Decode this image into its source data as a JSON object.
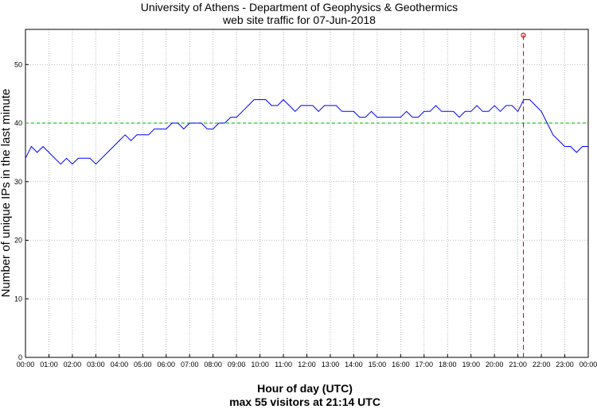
{
  "chart_data": {
    "type": "line",
    "title": "University of Athens - Department of Geophysics & Geothermics",
    "subtitle": "web site traffic for 07-Jun-2018",
    "xlabel": "Hour of day (UTC)",
    "footer": "max 55 visitors at 21:14 UTC",
    "ylabel": "Number of unique IPs in the last minute",
    "xlim": [
      0,
      24
    ],
    "ylim": [
      0,
      56
    ],
    "x_ticks": [
      "00:00",
      "01:00",
      "02:00",
      "03:00",
      "04:00",
      "05:00",
      "06:00",
      "07:00",
      "08:00",
      "09:00",
      "10:00",
      "11:00",
      "12:00",
      "13:00",
      "14:00",
      "15:00",
      "16:00",
      "17:00",
      "18:00",
      "19:00",
      "20:00",
      "21:00",
      "22:00",
      "23:00",
      "00:00"
    ],
    "y_ticks": [
      0,
      10,
      20,
      30,
      40,
      50
    ],
    "grid": true,
    "reference_line": 40,
    "max_point": {
      "x": 21.233,
      "y": 55
    },
    "series": [
      {
        "x": [
          0,
          0.25,
          0.5,
          0.75,
          1,
          1.25,
          1.5,
          1.75,
          2,
          2.25,
          2.5,
          2.75,
          3,
          3.25,
          3.5,
          3.75,
          4,
          4.25,
          4.5,
          4.75,
          5,
          5.25,
          5.5,
          5.75,
          6,
          6.25,
          6.5,
          6.75,
          7,
          7.25,
          7.5,
          7.75,
          8,
          8.25,
          8.5,
          8.75,
          9,
          9.25,
          9.5,
          9.75,
          10,
          10.25,
          10.5,
          10.75,
          11,
          11.25,
          11.5,
          11.75,
          12,
          12.25,
          12.5,
          12.75,
          13,
          13.25,
          13.5,
          13.75,
          14,
          14.25,
          14.5,
          14.75,
          15,
          15.25,
          15.5,
          15.75,
          16,
          16.25,
          16.5,
          16.75,
          17,
          17.25,
          17.5,
          17.75,
          18,
          18.25,
          18.5,
          18.75,
          19,
          19.25,
          19.5,
          19.75,
          20,
          20.25,
          20.5,
          20.75,
          21,
          21.25,
          21.5,
          21.75,
          22,
          22.25,
          22.5,
          22.75,
          23,
          23.25,
          23.5,
          23.75,
          24
        ],
        "y": [
          34,
          36,
          35,
          36,
          35,
          34,
          33,
          34,
          33,
          34,
          34,
          34,
          33,
          34,
          35,
          36,
          37,
          38,
          37,
          38,
          38,
          38,
          39,
          39,
          39,
          40,
          40,
          39,
          40,
          40,
          40,
          39,
          39,
          40,
          40,
          41,
          41,
          42,
          43,
          44,
          44,
          44,
          43,
          43,
          44,
          43,
          42,
          43,
          43,
          43,
          42,
          43,
          43,
          43,
          42,
          42,
          42,
          41,
          41,
          42,
          41,
          41,
          41,
          41,
          41,
          42,
          41,
          41,
          42,
          42,
          43,
          42,
          42,
          42,
          41,
          42,
          42,
          43,
          42,
          42,
          43,
          42,
          43,
          43,
          42,
          44,
          44,
          43,
          42,
          40,
          38,
          37,
          36,
          36,
          35,
          36,
          36
        ]
      }
    ]
  }
}
